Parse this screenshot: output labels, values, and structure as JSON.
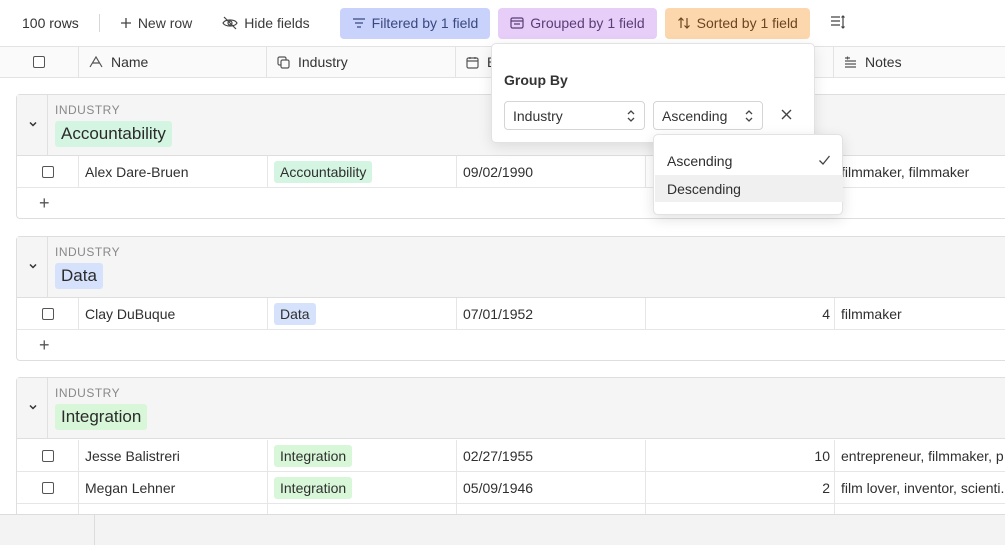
{
  "toolbar": {
    "row_count": "100 rows",
    "new_row": "New row",
    "hide_fields": "Hide fields",
    "filtered": "Filtered by 1 field",
    "grouped": "Grouped by 1 field",
    "sorted": "Sorted by 1 field",
    "colors": {
      "filter_bg": "#c9d2fa",
      "group_bg": "#e6cef8",
      "sort_bg": "#fcd7ad"
    }
  },
  "columns": {
    "name": "Name",
    "industry": "Industry",
    "date_partial": "B",
    "notes": "Notes"
  },
  "group_by_popover": {
    "title": "Group By",
    "field_select": "Industry",
    "order_select": "Ascending",
    "options": [
      "Ascending",
      "Descending"
    ],
    "selected_option": "Ascending"
  },
  "groups": [
    {
      "label": "INDUSTRY",
      "value": "Accountability",
      "rows": [
        {
          "name": "Alex Dare-Bruen",
          "industry": "Accountability",
          "date": "09/02/1990",
          "number": "",
          "notes": "filmmaker, filmmaker"
        }
      ]
    },
    {
      "label": "INDUSTRY",
      "value": "Data",
      "rows": [
        {
          "name": "Clay DuBuque",
          "industry": "Data",
          "date": "07/01/1952",
          "number": "4",
          "notes": "filmmaker"
        }
      ]
    },
    {
      "label": "INDUSTRY",
      "value": "Integration",
      "rows": [
        {
          "name": "Jesse Balistreri",
          "industry": "Integration",
          "date": "02/27/1955",
          "number": "10",
          "notes": "entrepreneur, filmmaker, p"
        },
        {
          "name": "Megan Lehner",
          "industry": "Integration",
          "date": "05/09/1946",
          "number": "2",
          "notes": "film lover, inventor, scienti..."
        }
      ]
    }
  ],
  "add_row_symbol": "+"
}
